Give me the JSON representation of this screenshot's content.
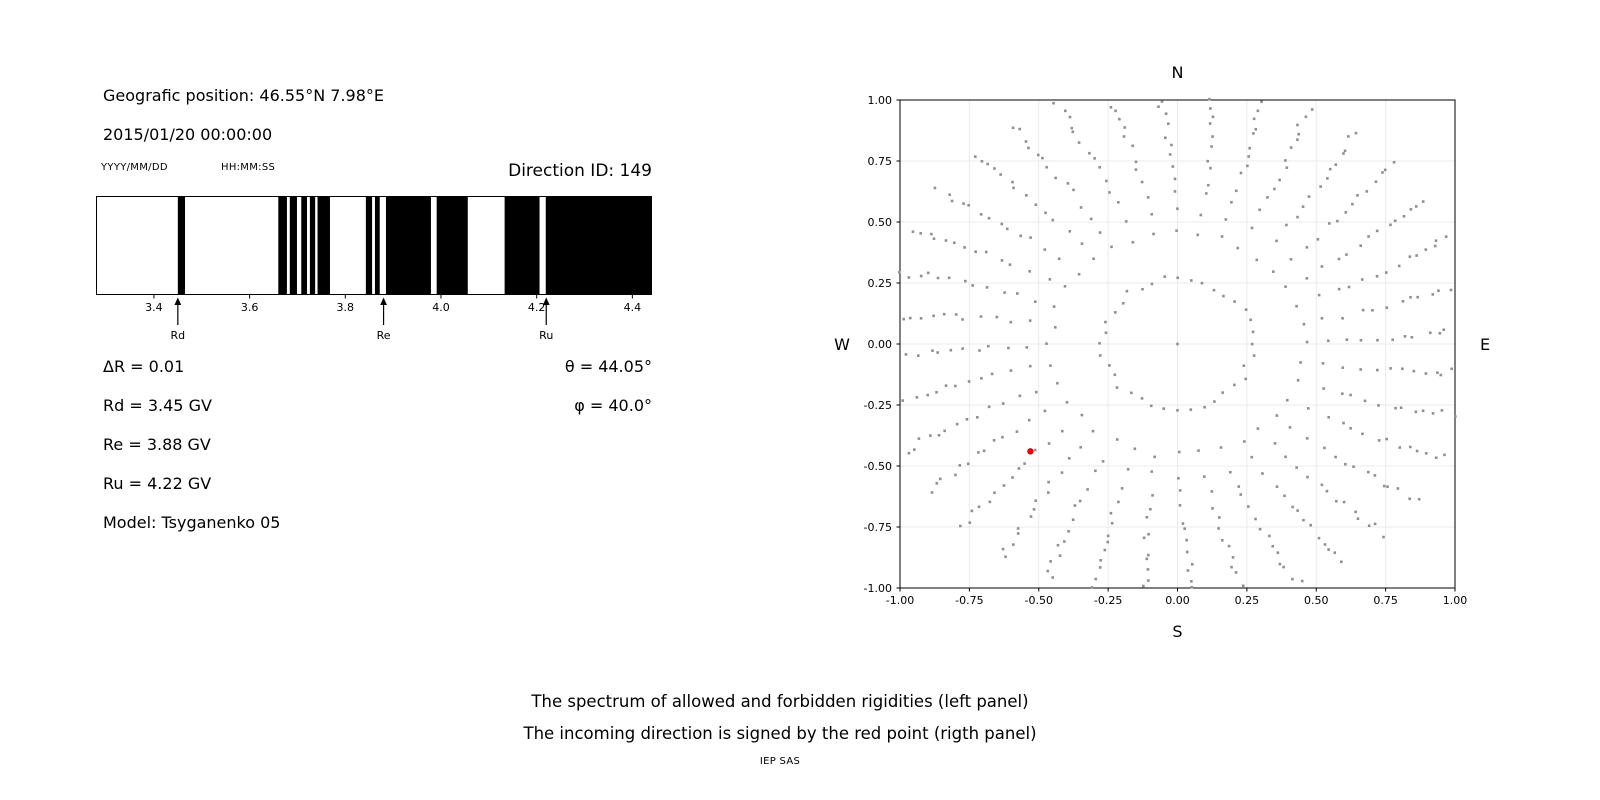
{
  "header": {
    "geo_position": "Geografic position: 46.55°N 7.98°E",
    "datetime": "2015/01/20 00:00:00",
    "date_format_hint": "YYYY/MM/DD",
    "time_format_hint": "HH:MM:SS",
    "direction_id": "Direction ID: 149"
  },
  "left_panel": {
    "delta_r": "ΔR = 0.01",
    "rd": "Rd = 3.45 GV",
    "re": "Re = 3.88 GV",
    "ru": "Ru = 4.22 GV",
    "model": "Model: Tsyganenko 05",
    "theta": "θ = 44.05°",
    "phi": "φ = 40.0°"
  },
  "captions": {
    "line1": "The spectrum of allowed and forbidden rigidities (left panel)",
    "line2": "The incoming direction is signed by the red point (rigth panel)",
    "credit": "IEP SAS"
  },
  "chart_data": [
    {
      "type": "bar",
      "name": "rigidity-spectrum",
      "description": "Barcode spectrum of allowed (black) and forbidden (white) rigidities in GV",
      "xlim": [
        3.28,
        4.44
      ],
      "xticks": [
        3.4,
        3.6,
        3.8,
        4.0,
        4.2,
        4.4
      ],
      "bar_color": "#000000",
      "black_intervals": [
        [
          3.45,
          3.465
        ],
        [
          3.66,
          3.678
        ],
        [
          3.684,
          3.699
        ],
        [
          3.708,
          3.72
        ],
        [
          3.726,
          3.737
        ],
        [
          3.742,
          3.768
        ],
        [
          3.843,
          3.856
        ],
        [
          3.862,
          3.872
        ],
        [
          3.885,
          3.979
        ],
        [
          3.991,
          4.056
        ],
        [
          4.133,
          4.206
        ],
        [
          4.219,
          4.44
        ]
      ],
      "markers": [
        {
          "label": "Rd",
          "value": 3.45
        },
        {
          "label": "Re",
          "value": 3.88
        },
        {
          "label": "Ru",
          "value": 4.22
        }
      ]
    },
    {
      "type": "scatter",
      "name": "incoming-direction-map",
      "description": "Sky map of directions; gray dots form 36 radial spokes, red point marks incoming direction ID 149",
      "xlim": [
        -1,
        1
      ],
      "ylim": [
        -1,
        1
      ],
      "xticks": [
        -1.0,
        -0.75,
        -0.5,
        -0.25,
        0.0,
        0.25,
        0.5,
        0.75,
        1.0
      ],
      "yticks": [
        -1.0,
        -0.75,
        -0.5,
        -0.25,
        0.0,
        0.25,
        0.5,
        0.75,
        1.0
      ],
      "grid": true,
      "grid_color": "#ebebeb",
      "compass": {
        "top": "N",
        "bottom": "S",
        "left": "W",
        "right": "E"
      },
      "gray_dots": {
        "pattern": "radial-spokes",
        "color": "#8f8f8f",
        "n_spokes": 36,
        "azimuth_step_deg": 10,
        "dots_per_spoke": 15,
        "r_inner": 0.27,
        "r_outer": 1.07,
        "density_exponent": 0.55,
        "curvature_deg": 4,
        "jitter_angle_deg": 0.9,
        "jitter_radius": 0.015,
        "clip": 1.005,
        "seed": 149,
        "center_dot": true
      },
      "red_point": {
        "x": -0.53,
        "y": -0.44,
        "color": "#e8000b"
      }
    }
  ]
}
